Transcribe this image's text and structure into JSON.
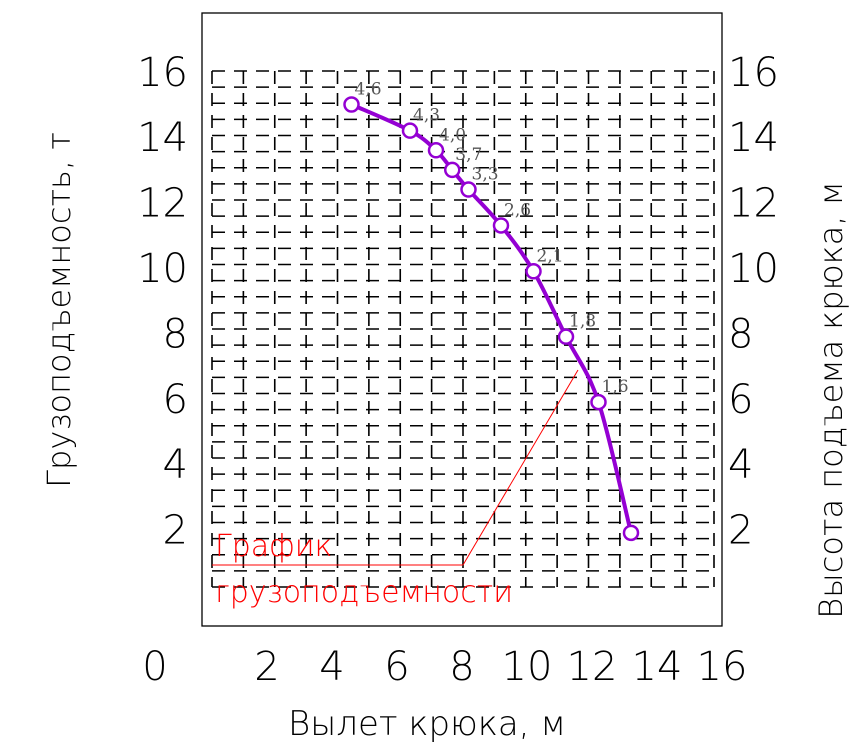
{
  "chart_data": {
    "type": "line",
    "xlabel": "Вылет крюка, м",
    "ylabel_left": "Грузоподъемность, т",
    "ylabel_right": "Высота подъема крюка, м",
    "x_ticks": [
      "0",
      "2",
      "4",
      "6",
      "8",
      "10",
      "12",
      "14",
      "16"
    ],
    "y_ticks": [
      "2",
      "4",
      "6",
      "8",
      "10",
      "12",
      "14",
      "16"
    ],
    "xlim": [
      0,
      16
    ],
    "ylim": [
      0,
      16
    ],
    "grid": true,
    "annotation": [
      "График",
      "грузоподъемности"
    ],
    "series": [
      {
        "color": "#9400d3",
        "x": [
          4.6,
          6.4,
          7.2,
          7.7,
          8.2,
          9.2,
          10.2,
          11.2,
          12.2,
          13.2
        ],
        "y": [
          15.0,
          14.2,
          13.6,
          13.0,
          12.4,
          11.3,
          9.9,
          7.9,
          5.9,
          1.9
        ],
        "labels": [
          "4,6",
          "4,3",
          "4,0",
          "3,7",
          "3,3",
          "2,6",
          "2,1",
          "1,8",
          "1,6",
          ""
        ]
      }
    ]
  }
}
